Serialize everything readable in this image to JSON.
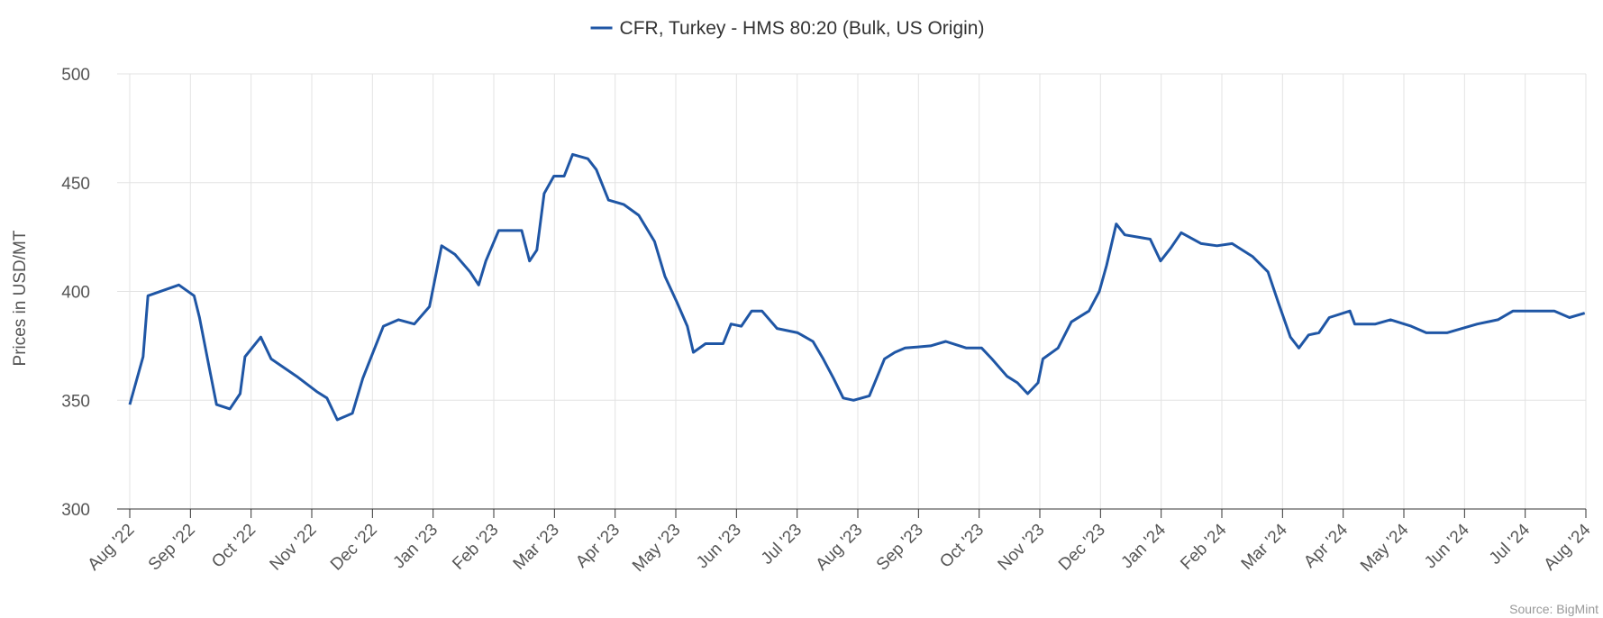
{
  "chart_data": {
    "type": "line",
    "y_label": "Prices in USD/MT",
    "source": "Source: BigMint",
    "legend": "top",
    "grid": true,
    "series": [
      {
        "name": "CFR, Turkey - HMS 80:20 (Bulk, US Origin)",
        "color": "#1f56a5",
        "x": [
          0,
          0.22,
          0.3,
          0.81,
          1.06,
          1.15,
          1.31,
          1.43,
          1.65,
          1.82,
          1.9,
          2.16,
          2.33,
          2.75,
          3.08,
          3.25,
          3.42,
          3.67,
          3.84,
          4.01,
          4.18,
          4.43,
          4.69,
          4.94,
          5.14,
          5.36,
          5.61,
          5.75,
          5.87,
          6.08,
          6.46,
          6.59,
          6.71,
          6.83,
          6.99,
          7.16,
          7.3,
          7.55,
          7.69,
          7.89,
          8.14,
          8.39,
          8.65,
          8.82,
          9.02,
          9.19,
          9.29,
          9.49,
          9.78,
          9.91,
          10.08,
          10.25,
          10.42,
          10.67,
          11.01,
          11.26,
          11.43,
          11.6,
          11.76,
          11.93,
          12.19,
          12.44,
          12.61,
          12.78,
          13.2,
          13.45,
          13.79,
          14.04,
          14.21,
          14.46,
          14.63,
          14.8,
          14.97,
          15.05,
          15.3,
          15.52,
          15.81,
          15.98,
          16.1,
          16.26,
          16.4,
          16.82,
          16.99,
          17.16,
          17.33,
          17.66,
          17.92,
          18.17,
          18.51,
          18.76,
          18.93,
          19.13,
          19.27,
          19.43,
          19.6,
          19.77,
          20.11,
          20.19,
          20.53,
          20.78,
          21.12,
          21.37,
          21.71,
          21.96,
          22.21,
          22.55,
          22.8,
          23.48,
          23.73,
          23.98
        ],
        "values": [
          348,
          370,
          398,
          403,
          398,
          388,
          365,
          348,
          346,
          353,
          370,
          379,
          369,
          361,
          354,
          351,
          341,
          344,
          360,
          372,
          384,
          387,
          385,
          393,
          421,
          417,
          409,
          403,
          414,
          428,
          428,
          414,
          419,
          445,
          453,
          453,
          463,
          461,
          456,
          442,
          440,
          435,
          423,
          407,
          395,
          384,
          372,
          376,
          376,
          385,
          384,
          391,
          391,
          383,
          381,
          377,
          369,
          360,
          351,
          350,
          352,
          369,
          372,
          374,
          375,
          377,
          374,
          374,
          369,
          361,
          358,
          353,
          358,
          369,
          374,
          386,
          391,
          400,
          412,
          431,
          426,
          424,
          414,
          420,
          427,
          422,
          421,
          422,
          416,
          409,
          395,
          379,
          374,
          380,
          381,
          388,
          391,
          385,
          385,
          387,
          384,
          381,
          381,
          383,
          385,
          387,
          391,
          391,
          388,
          390
        ]
      }
    ],
    "xlim": [
      0,
      24
    ],
    "xticks": [
      {
        "value": 0,
        "label": "Aug '22"
      },
      {
        "value": 1,
        "label": "Sep '22"
      },
      {
        "value": 2,
        "label": "Oct '22"
      },
      {
        "value": 3,
        "label": "Nov '22"
      },
      {
        "value": 4,
        "label": "Dec '22"
      },
      {
        "value": 5,
        "label": "Jan '23"
      },
      {
        "value": 6,
        "label": "Feb '23"
      },
      {
        "value": 7,
        "label": "Mar '23"
      },
      {
        "value": 8,
        "label": "Apr '23"
      },
      {
        "value": 9,
        "label": "May '23"
      },
      {
        "value": 10,
        "label": "Jun '23"
      },
      {
        "value": 11,
        "label": "Jul '23"
      },
      {
        "value": 12,
        "label": "Aug '23"
      },
      {
        "value": 13,
        "label": "Sep '23"
      },
      {
        "value": 14,
        "label": "Oct '23"
      },
      {
        "value": 15,
        "label": "Nov '23"
      },
      {
        "value": 16,
        "label": "Dec '23"
      },
      {
        "value": 17,
        "label": "Jan '24"
      },
      {
        "value": 18,
        "label": "Feb '24"
      },
      {
        "value": 19,
        "label": "Mar '24"
      },
      {
        "value": 20,
        "label": "Apr '24"
      },
      {
        "value": 21,
        "label": "May '24"
      },
      {
        "value": 22,
        "label": "Jun '24"
      },
      {
        "value": 23,
        "label": "Jul '24"
      },
      {
        "value": 24,
        "label": "Aug '24"
      }
    ],
    "ylim": [
      300,
      500
    ],
    "yticks": [
      300,
      350,
      400,
      450,
      500
    ]
  }
}
